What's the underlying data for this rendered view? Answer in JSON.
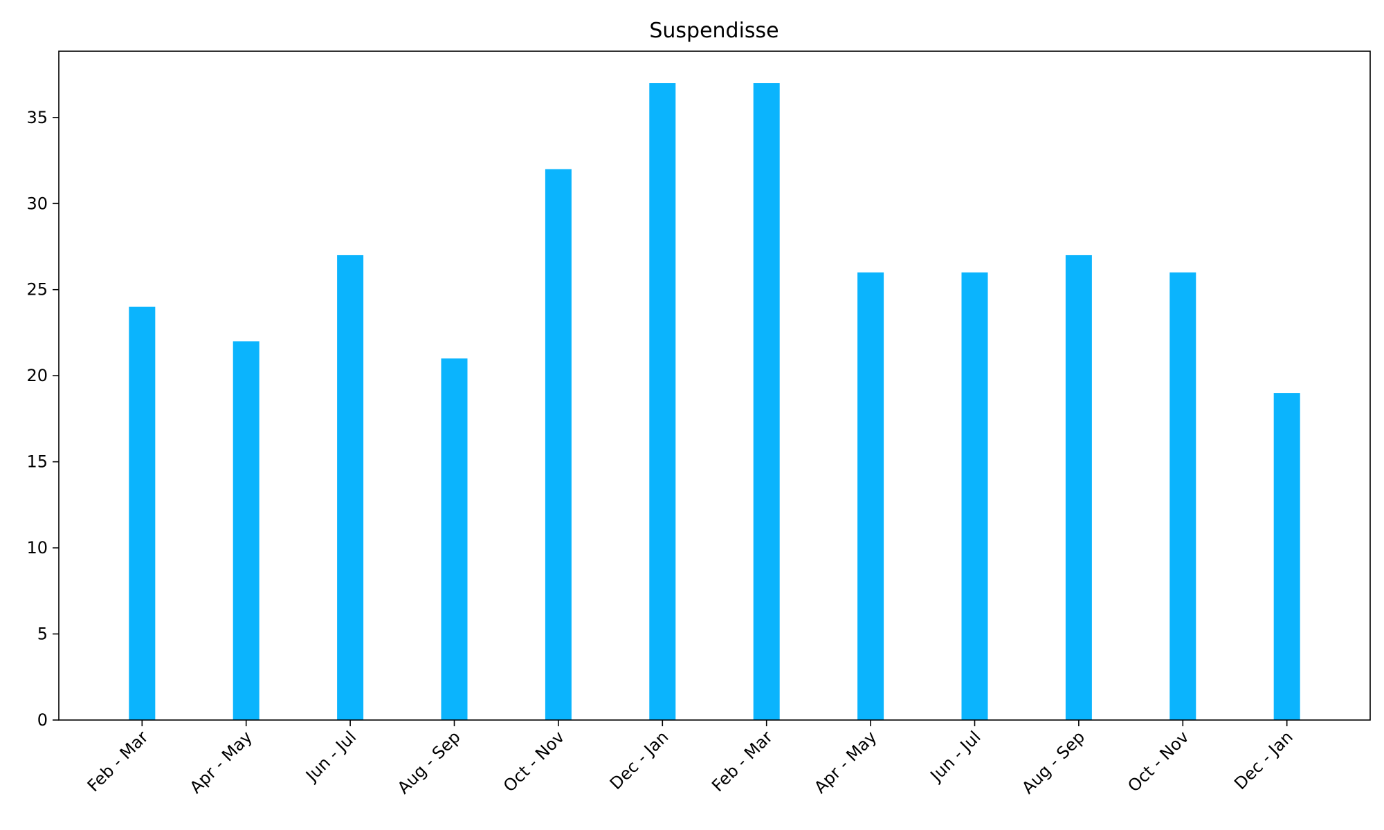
{
  "chart_data": {
    "type": "bar",
    "title": "Suspendisse",
    "xlabel": "",
    "ylabel": "",
    "categories": [
      "Feb - Mar",
      "Apr - May",
      "Jun - Jul",
      "Aug - Sep",
      "Oct - Nov",
      "Dec - Jan",
      "Feb - Mar",
      "Apr - May",
      "Jun - Jul",
      "Aug - Sep",
      "Oct - Nov",
      "Dec - Jan"
    ],
    "values": [
      24,
      22,
      27,
      21,
      32,
      37,
      37,
      26,
      26,
      27,
      26,
      19
    ],
    "ylim": [
      0,
      38.85
    ],
    "yticks": [
      0,
      5,
      10,
      15,
      20,
      25,
      30,
      35
    ],
    "grid": false,
    "legend": "none",
    "bar_color": "#0bb4fd",
    "xtick_rotation": 45
  }
}
